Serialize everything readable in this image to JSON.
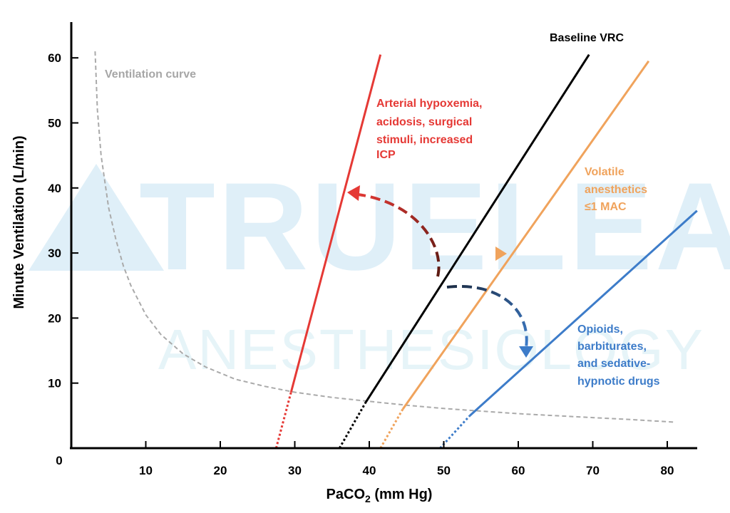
{
  "chart_data": {
    "type": "line",
    "xlabel_base": "PaCO",
    "xlabel_sub": "2",
    "xlabel_suffix": " (mm Hg)",
    "ylabel": "Minute Ventilation (L/min)",
    "origin_label": "0",
    "xlim": [
      0,
      84
    ],
    "ylim": [
      0,
      66
    ],
    "x_ticks": [
      10,
      20,
      30,
      40,
      50,
      60,
      70,
      80
    ],
    "y_ticks": [
      10,
      20,
      30,
      40,
      50,
      60
    ],
    "watermark": {
      "line1": "TRUELEARN",
      "line2": "ANESTHESIOLOGY"
    },
    "ventilation_curve": {
      "label": "Ventilation curve",
      "color": "#aaaaaa",
      "x": [
        3.2,
        3.5,
        4,
        5,
        6,
        7,
        8,
        10,
        12,
        15,
        18,
        22,
        26,
        30,
        35,
        40,
        45,
        50,
        55,
        60,
        65,
        70,
        75,
        81
      ],
      "y": [
        61,
        52,
        45,
        37,
        32,
        28,
        25,
        20.5,
        17.5,
        14.5,
        12.5,
        10.6,
        9.5,
        8.6,
        7.8,
        7.2,
        6.6,
        6.1,
        5.7,
        5.3,
        5.0,
        4.7,
        4.4,
        4.0
      ]
    },
    "series": [
      {
        "name": "Arterial hypoxemia, acidosis, surgical stimuli, increased ICP",
        "label_lines": [
          "Arterial hypoxemia,",
          "acidosis, surgical",
          "stimuli, increased",
          "ICP"
        ],
        "color": "#e53935",
        "dotted": [
          [
            27.5,
            0
          ],
          [
            29.5,
            8.6
          ]
        ],
        "solid": [
          [
            29.5,
            8.6
          ],
          [
            41.5,
            60.5
          ]
        ]
      },
      {
        "name": "Baseline VRC",
        "label_lines": [
          "Baseline VRC"
        ],
        "color": "#000000",
        "dotted": [
          [
            36,
            0
          ],
          [
            39.5,
            7
          ]
        ],
        "solid": [
          [
            39.5,
            7
          ],
          [
            69.5,
            60.5
          ]
        ]
      },
      {
        "name": "Volatile anesthetics ≤1 MAC",
        "label_lines": [
          "Volatile",
          "anesthetics",
          "≤1 MAC"
        ],
        "color": "#f0a35c",
        "dotted": [
          [
            41.5,
            0
          ],
          [
            44.5,
            6
          ]
        ],
        "solid": [
          [
            44.5,
            6
          ],
          [
            77.5,
            59.5
          ]
        ]
      },
      {
        "name": "Opioids, barbiturates, and sedative-hypnotic drugs",
        "label_lines": [
          "Opioids,",
          "barbiturates,",
          "and sedative-",
          "hypnotic drugs"
        ],
        "color": "#3d7cc9",
        "dotted": [
          [
            49.5,
            0
          ],
          [
            53.5,
            5
          ]
        ],
        "solid": [
          [
            53.5,
            5
          ],
          [
            84,
            36.5
          ]
        ]
      }
    ],
    "arrows": [
      {
        "to": "Arterial hypoxemia, acidosis, surgical stimuli, increased ICP",
        "from": [
          49.5,
          26.5
        ],
        "to_point": [
          37,
          39.5
        ],
        "colors": [
          "#5a1a12",
          "#e53935"
        ]
      },
      {
        "to": "Volatile anesthetics ≤1 MAC",
        "from": [
          53.5,
          29.9
        ],
        "to_point": [
          59,
          29.9
        ],
        "colors": [
          "#6b4630",
          "#f0a35c"
        ]
      },
      {
        "to": "Opioids, barbiturates, and sedative-hypnotic drugs",
        "from": [
          50.5,
          24.6
        ],
        "to_point": [
          60,
          13.5
        ],
        "colors": [
          "#1c2c44",
          "#3d7cc9"
        ]
      }
    ]
  }
}
